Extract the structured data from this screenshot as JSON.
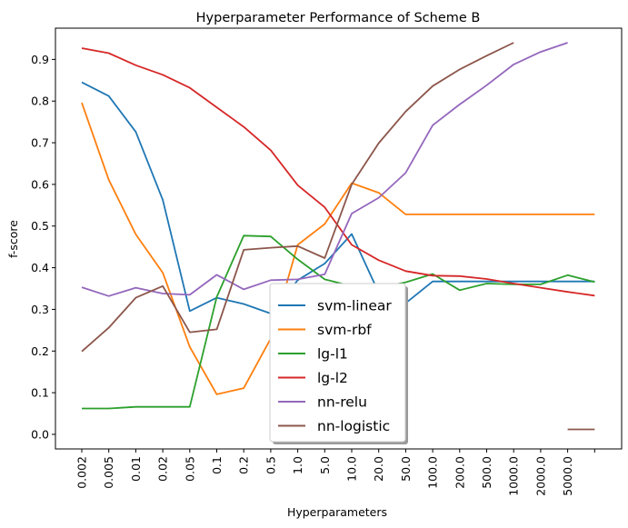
{
  "chart_data": {
    "type": "line",
    "title": "Hyperparameter Performance of Scheme B",
    "xlabel": "Hyperparameters",
    "ylabel": "f-score",
    "x_tick_labels": [
      "0.002",
      "0.005",
      "0.01",
      "0.02",
      "0.05",
      "0.1",
      "0.2",
      "0.5",
      "1.0",
      "5.0",
      "10.0",
      "20.0",
      "50.0",
      "100.0",
      "200.0",
      "500.0",
      "1000.0",
      "2000.0",
      "5000.0",
      ""
    ],
    "y_ticks": [
      "0.0",
      "0.1",
      "0.2",
      "0.3",
      "0.4",
      "0.5",
      "0.6",
      "0.7",
      "0.8",
      "0.9"
    ],
    "ylim": [
      -0.035,
      0.975
    ],
    "grid": false,
    "legend_position": "lower-center",
    "series": [
      {
        "name": "svm-linear",
        "color": "#1f77b4",
        "values": [
          0.845,
          0.812,
          0.726,
          0.563,
          0.296,
          0.328,
          0.313,
          0.29,
          0.37,
          0.41,
          0.481,
          0.34,
          0.315,
          0.367,
          0.367,
          0.367,
          0.367,
          0.367,
          0.367,
          0.367
        ]
      },
      {
        "name": "svm-rbf",
        "color": "#ff7f0e",
        "values": [
          0.796,
          0.611,
          0.48,
          0.388,
          0.21,
          0.096,
          0.111,
          0.23,
          0.455,
          0.505,
          0.603,
          0.58,
          0.528,
          0.528,
          0.528,
          0.528,
          0.528,
          0.528,
          0.528,
          0.528
        ]
      },
      {
        "name": "lg-l1",
        "color": "#2ca02c",
        "values": [
          0.062,
          0.062,
          0.066,
          0.066,
          0.066,
          0.33,
          0.477,
          0.475,
          0.42,
          0.372,
          0.356,
          0.352,
          0.365,
          0.385,
          0.346,
          0.362,
          0.36,
          0.36,
          0.382,
          0.366
        ]
      },
      {
        "name": "lg-l2",
        "color": "#d62728",
        "values": [
          0.927,
          0.915,
          0.886,
          0.863,
          0.832,
          0.785,
          0.738,
          0.682,
          0.598,
          0.545,
          0.455,
          0.418,
          0.392,
          0.381,
          0.38,
          0.373,
          0.362,
          0.352,
          0.342,
          0.333
        ]
      },
      {
        "name": "nn-relu",
        "color": "#9467bd",
        "values": [
          0.353,
          0.332,
          0.352,
          0.338,
          0.335,
          0.383,
          0.348,
          0.37,
          0.372,
          0.384,
          0.53,
          0.568,
          0.628,
          0.742,
          0.792,
          0.838,
          0.888,
          0.918,
          0.94,
          null
        ]
      },
      {
        "name": "nn-logistic",
        "color": "#8c564b",
        "values": [
          0.199,
          0.256,
          0.328,
          0.356,
          0.245,
          0.252,
          0.443,
          0.448,
          0.452,
          0.423,
          0.6,
          0.699,
          0.775,
          0.836,
          0.876,
          0.909,
          0.94,
          null,
          0.012,
          0.012
        ]
      }
    ]
  }
}
